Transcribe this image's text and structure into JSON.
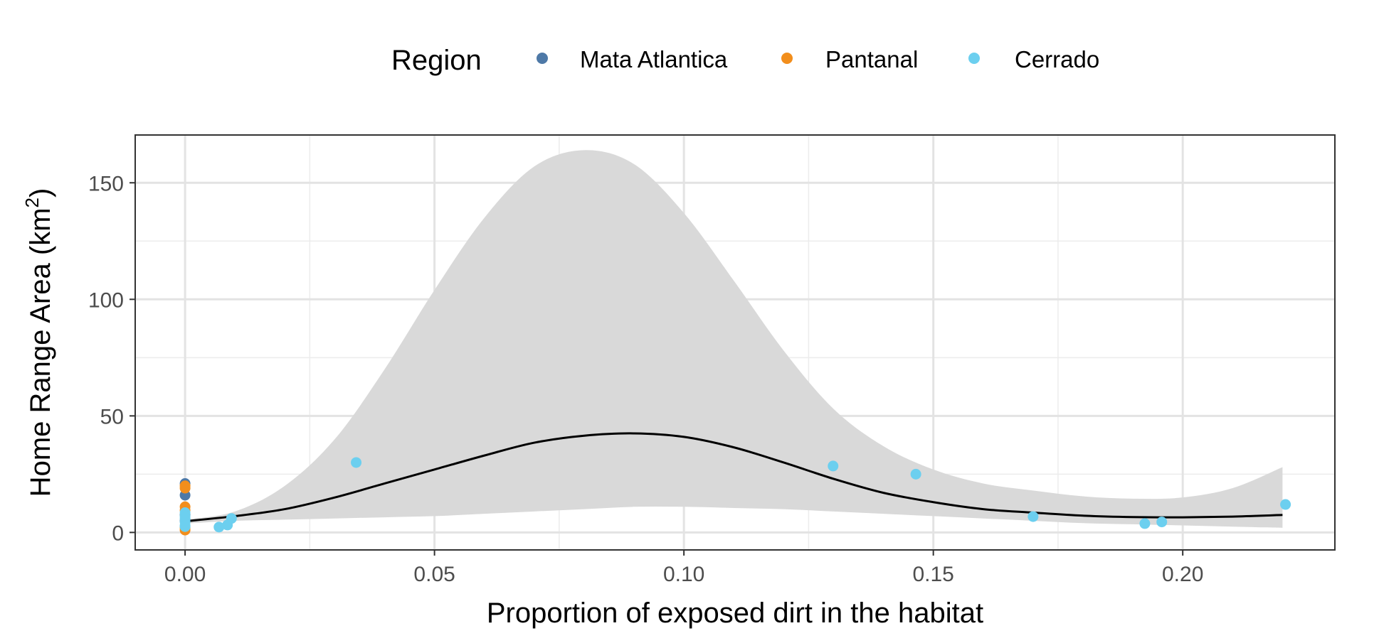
{
  "chart_data": {
    "type": "scatter",
    "title": "",
    "xlabel": "Proportion of exposed dirt in the habitat",
    "ylabel": {
      "main": "Home Range Area (km",
      "superscript": "2",
      "close": ")"
    },
    "xlim": [
      -0.01,
      0.2305
    ],
    "ylim": [
      -7.5,
      170.5
    ],
    "x_ticks": [
      {
        "value": 0.0,
        "label": "0.00"
      },
      {
        "value": 0.05,
        "label": "0.05"
      },
      {
        "value": 0.1,
        "label": "0.10"
      },
      {
        "value": 0.15,
        "label": "0.15"
      },
      {
        "value": 0.2,
        "label": "0.20"
      }
    ],
    "y_ticks": [
      {
        "value": 0,
        "label": "0"
      },
      {
        "value": 50,
        "label": "50"
      },
      {
        "value": 100,
        "label": "100"
      },
      {
        "value": 150,
        "label": "150"
      }
    ],
    "grid": true,
    "legend": {
      "title": "Region",
      "position": "top"
    },
    "series": [
      {
        "name": "Mata Atlantica",
        "color": "#4E79A7",
        "points": [
          {
            "x": 0.0,
            "y": 21.0
          },
          {
            "x": 0.0,
            "y": 16.0
          },
          {
            "x": 0.0,
            "y": 7.5
          },
          {
            "x": 0.0,
            "y": 5.0
          }
        ]
      },
      {
        "name": "Pantanal",
        "color": "#F28E1C",
        "points": [
          {
            "x": 0.0,
            "y": 20.0
          },
          {
            "x": 0.0,
            "y": 19.0
          },
          {
            "x": 0.0,
            "y": 11.0
          },
          {
            "x": 0.0,
            "y": 9.5
          },
          {
            "x": 0.0,
            "y": 2.0
          },
          {
            "x": 0.0,
            "y": 1.0
          }
        ]
      },
      {
        "name": "Cerrado",
        "color": "#6CCFEF",
        "points": [
          {
            "x": 0.0,
            "y": 8.5
          },
          {
            "x": 0.0,
            "y": 7.0
          },
          {
            "x": 0.0,
            "y": 6.0
          },
          {
            "x": 0.0,
            "y": 4.5
          },
          {
            "x": 0.0,
            "y": 3.0
          },
          {
            "x": 0.0,
            "y": 2.5
          },
          {
            "x": 0.0068,
            "y": 2.3
          },
          {
            "x": 0.0085,
            "y": 3.2
          },
          {
            "x": 0.0093,
            "y": 6.0
          },
          {
            "x": 0.0343,
            "y": 30.0
          },
          {
            "x": 0.1299,
            "y": 28.5
          },
          {
            "x": 0.1465,
            "y": 25.0
          },
          {
            "x": 0.17,
            "y": 6.8
          },
          {
            "x": 0.1924,
            "y": 3.8
          },
          {
            "x": 0.1958,
            "y": 4.5
          },
          {
            "x": 0.2206,
            "y": 12.0
          }
        ]
      }
    ],
    "smooth": {
      "color": "#000000",
      "fill": "#d9d9d9",
      "points": [
        {
          "x": 0.0,
          "y": 4.8,
          "lo": 3.8,
          "hi": 5.5
        },
        {
          "x": 0.01,
          "y": 7.0,
          "lo": 5.0,
          "hi": 9.0
        },
        {
          "x": 0.02,
          "y": 10.0,
          "lo": 5.5,
          "hi": 20.0
        },
        {
          "x": 0.03,
          "y": 15.0,
          "lo": 6.0,
          "hi": 40.0
        },
        {
          "x": 0.04,
          "y": 21.0,
          "lo": 6.5,
          "hi": 70.0
        },
        {
          "x": 0.05,
          "y": 27.0,
          "lo": 7.0,
          "hi": 104.0
        },
        {
          "x": 0.06,
          "y": 33.0,
          "lo": 8.0,
          "hi": 135.0
        },
        {
          "x": 0.07,
          "y": 38.5,
          "lo": 9.0,
          "hi": 157.0
        },
        {
          "x": 0.08,
          "y": 41.5,
          "lo": 10.0,
          "hi": 164.0
        },
        {
          "x": 0.09,
          "y": 42.5,
          "lo": 11.0,
          "hi": 158.0
        },
        {
          "x": 0.1,
          "y": 41.0,
          "lo": 11.0,
          "hi": 137.0
        },
        {
          "x": 0.11,
          "y": 36.5,
          "lo": 10.5,
          "hi": 108.0
        },
        {
          "x": 0.12,
          "y": 30.0,
          "lo": 10.0,
          "hi": 78.0
        },
        {
          "x": 0.13,
          "y": 23.0,
          "lo": 9.0,
          "hi": 53.0
        },
        {
          "x": 0.14,
          "y": 17.0,
          "lo": 8.0,
          "hi": 37.0
        },
        {
          "x": 0.15,
          "y": 13.0,
          "lo": 7.0,
          "hi": 27.0
        },
        {
          "x": 0.16,
          "y": 10.0,
          "lo": 6.0,
          "hi": 21.0
        },
        {
          "x": 0.17,
          "y": 8.5,
          "lo": 5.0,
          "hi": 18.0
        },
        {
          "x": 0.18,
          "y": 7.2,
          "lo": 4.0,
          "hi": 15.5
        },
        {
          "x": 0.19,
          "y": 6.6,
          "lo": 3.5,
          "hi": 14.5
        },
        {
          "x": 0.2,
          "y": 6.5,
          "lo": 3.0,
          "hi": 15.0
        },
        {
          "x": 0.21,
          "y": 6.8,
          "lo": 2.5,
          "hi": 19.0
        },
        {
          "x": 0.22,
          "y": 7.5,
          "lo": 2.0,
          "hi": 28.0
        }
      ]
    }
  }
}
